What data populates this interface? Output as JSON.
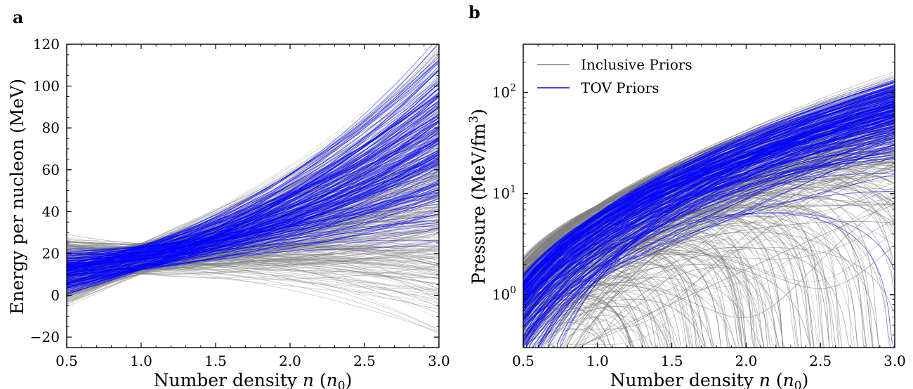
{
  "colors": {
    "inclusive": "#808080",
    "tov": "#0000ff"
  },
  "chart_data": [
    {
      "type": "line",
      "panel_label": "a",
      "xlabel_parts": [
        "Number density ",
        "n",
        " (",
        "n",
        "0",
        ")"
      ],
      "ylabel": "Energy per nucleon (MeV)",
      "xlim": [
        0.5,
        3.0
      ],
      "ylim": [
        -25,
        120
      ],
      "x_ticks": [
        0.5,
        1.0,
        1.5,
        2.0,
        2.5,
        3.0
      ],
      "x_tick_labels": [
        "0.5",
        "1.0",
        "1.5",
        "2.0",
        "2.5",
        "3.0"
      ],
      "y_ticks": [
        -20,
        0,
        20,
        40,
        60,
        80,
        100,
        120
      ],
      "y_tick_labels": [
        "−20",
        "0",
        "20",
        "40",
        "60",
        "80",
        "100",
        "120"
      ],
      "y_scale": "linear",
      "grid": false,
      "series": [
        {
          "name": "Inclusive Priors",
          "kind": "ensemble",
          "count": 500,
          "anchor": {
            "x": 1.0,
            "y_range": [
              10,
              25
            ]
          },
          "y_at_x0.5": [
            -20,
            35
          ],
          "y_at_x3.0": [
            -25,
            120
          ]
        },
        {
          "name": "TOV Priors",
          "kind": "ensemble",
          "count": 180,
          "anchor": {
            "x": 1.0,
            "y_range": [
              12,
              24
            ]
          },
          "y_at_x0.5": [
            -18,
            25
          ],
          "y_at_x3.0": [
            30,
            120
          ]
        }
      ]
    },
    {
      "type": "line",
      "panel_label": "b",
      "xlabel_parts": [
        "Number density ",
        "n",
        " (",
        "n",
        "0",
        ")"
      ],
      "ylabel_parts": [
        "Pressure (MeV/fm",
        "3",
        ")"
      ],
      "xlim": [
        0.5,
        3.0
      ],
      "ylim": [
        0.3,
        300
      ],
      "y_scale": "log",
      "x_ticks": [
        0.5,
        1.0,
        1.5,
        2.0,
        2.5,
        3.0
      ],
      "x_tick_labels": [
        "0.5",
        "1.0",
        "1.5",
        "2.0",
        "2.5",
        "3.0"
      ],
      "y_ticks": [
        1,
        10,
        100
      ],
      "y_tick_labels": [
        [
          "10",
          "0"
        ],
        [
          "10",
          "1"
        ],
        [
          "10",
          "2"
        ]
      ],
      "grid": false,
      "legend": {
        "placement": "top-left",
        "entries": [
          "Inclusive Priors",
          "TOV Priors"
        ]
      },
      "series": [
        {
          "name": "Inclusive Priors",
          "kind": "ensemble",
          "count": 500,
          "y_at_x0.5": [
            0.3,
            2.8
          ],
          "y_at_x1.0": [
            0.3,
            8
          ],
          "y_at_x3.0": [
            0.3,
            300
          ]
        },
        {
          "name": "TOV Priors",
          "kind": "ensemble",
          "count": 180,
          "y_at_x0.5": [
            0.3,
            2.2
          ],
          "y_at_x1.0": [
            2,
            7
          ],
          "y_at_x3.0": [
            10,
            250
          ]
        }
      ]
    }
  ]
}
